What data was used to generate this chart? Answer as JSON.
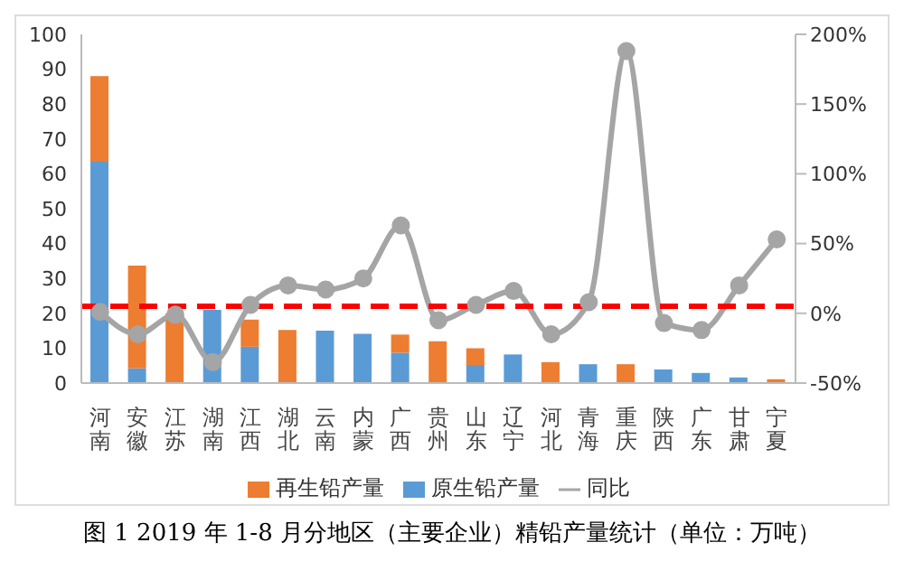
{
  "chart_data": {
    "type": "bar",
    "title": "图 1 2019 年 1-8 月分地区（主要企业）精铅产量统计（单位：万吨）",
    "categories": [
      "河南",
      "安徽",
      "江苏",
      "湖南",
      "江西",
      "湖北",
      "云南",
      "内蒙",
      "广西",
      "贵州",
      "山东",
      "辽宁",
      "河北",
      "青海",
      "重庆",
      "陕西",
      "广东",
      "甘肃",
      "宁夏"
    ],
    "stacked": true,
    "series": [
      {
        "name": "原生铅产量",
        "color": "#5b9bd5",
        "values": [
          63.5,
          4.2,
          0,
          21,
          10.4,
          0,
          15,
          14.1,
          8.7,
          0,
          5.2,
          8.2,
          0,
          5.4,
          0,
          3.9,
          2.9,
          1.6,
          0
        ]
      },
      {
        "name": "再生铅产量",
        "color": "#ed7d31",
        "values": [
          24.5,
          29.5,
          20,
          0,
          7.8,
          15.2,
          0,
          0,
          5.2,
          12,
          4.8,
          0,
          6,
          0,
          5.4,
          0,
          0,
          0,
          1.1
        ]
      },
      {
        "name": "同比",
        "type": "line",
        "axis": "y2",
        "color": "#a5a5a5",
        "values": [
          1,
          -15,
          -1,
          -35,
          6,
          20,
          17,
          25,
          63,
          -5,
          6,
          16,
          -15,
          8,
          188,
          -7,
          -12,
          20,
          53
        ]
      }
    ],
    "ylim": [
      0,
      100
    ],
    "yticks": [
      0,
      10,
      20,
      30,
      40,
      50,
      60,
      70,
      80,
      90,
      100
    ],
    "y2lim": [
      -50,
      200
    ],
    "y2ticks": [
      {
        "value": -50,
        "label": "-50%"
      },
      {
        "value": 0,
        "label": "0%"
      },
      {
        "value": 50,
        "label": "50%"
      },
      {
        "value": 100,
        "label": "100%"
      },
      {
        "value": 150,
        "label": "150%"
      },
      {
        "value": 200,
        "label": "200%"
      }
    ],
    "ref_lines": [
      {
        "axis": "y",
        "value": 22,
        "color": "#ff0000",
        "line_style": "dashed"
      }
    ],
    "marker": "circle",
    "grid": false,
    "legend": "bottom"
  }
}
